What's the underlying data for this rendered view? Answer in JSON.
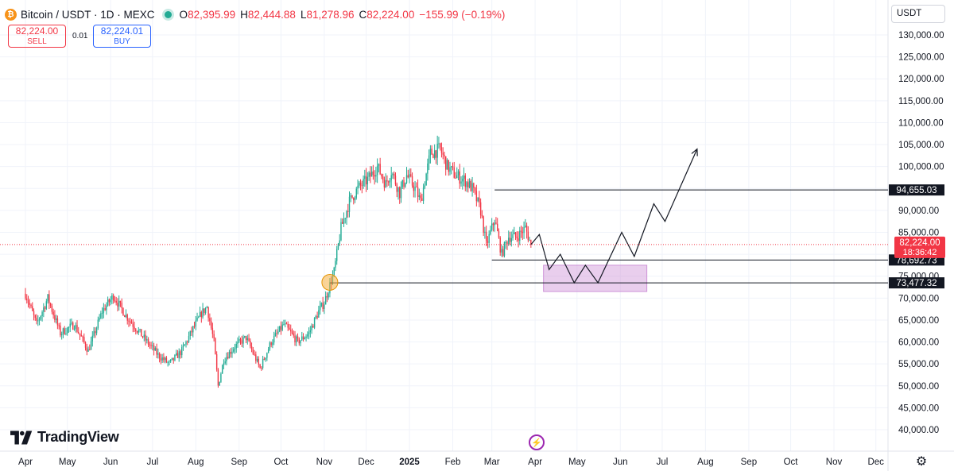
{
  "header": {
    "title": "Bitcoin / USDT · 1D · MEXC",
    "ohlc": [
      {
        "label": "O",
        "value": "82,395.99"
      },
      {
        "label": "H",
        "value": "82,444.88"
      },
      {
        "label": "L",
        "value": "81,278.96"
      },
      {
        "label": "C",
        "value": "82,224.00"
      }
    ],
    "change": "−155.99 (−0.19%)"
  },
  "trade": {
    "sell_price": "82,224.00",
    "sell_label": "SELL",
    "spread": "0.01",
    "buy_price": "82,224.01",
    "buy_label": "BUY"
  },
  "currency": "USDT",
  "brand": "TradingView",
  "colors": {
    "up": "#22ab94",
    "down": "#f23645",
    "zone": "#ce93d8",
    "marker": "#f5b041",
    "label_bg": "#131722"
  },
  "chart_data": {
    "type": "candlestick",
    "symbol": "BTCUSDT",
    "interval": "1D",
    "ylim": [
      37000,
      135500
    ],
    "ticks": [
      {
        "value": 130000,
        "label": "130,000.00"
      },
      {
        "value": 125000,
        "label": "125,000.00"
      },
      {
        "value": 120000,
        "label": "120,000.00"
      },
      {
        "value": 115000,
        "label": "115,000.00"
      },
      {
        "value": 110000,
        "label": "110,000.00"
      },
      {
        "value": 105000,
        "label": "105,000.00"
      },
      {
        "value": 100000,
        "label": "100,000.00"
      },
      {
        "value": 95000,
        "label": "95,000.00"
      },
      {
        "value": 90000,
        "label": "90,000.00"
      },
      {
        "value": 85000,
        "label": "85,000.00"
      },
      {
        "value": 80000,
        "label": "80,000.00"
      },
      {
        "value": 75000,
        "label": "75,000.00"
      },
      {
        "value": 70000,
        "label": "70,000.00"
      },
      {
        "value": 65000,
        "label": "65,000.00"
      },
      {
        "value": 60000,
        "label": "60,000.00"
      },
      {
        "value": 55000,
        "label": "55,000.00"
      },
      {
        "value": 50000,
        "label": "50,000.00"
      },
      {
        "value": 45000,
        "label": "45,000.00"
      },
      {
        "value": 40000,
        "label": "40,000.00"
      }
    ],
    "months": [
      {
        "label": "Apr",
        "day": 0
      },
      {
        "label": "May",
        "day": 30
      },
      {
        "label": "Jun",
        "day": 61
      },
      {
        "label": "Jul",
        "day": 91
      },
      {
        "label": "Aug",
        "day": 122
      },
      {
        "label": "Sep",
        "day": 153
      },
      {
        "label": "Oct",
        "day": 183
      },
      {
        "label": "Nov",
        "day": 214
      },
      {
        "label": "Dec",
        "day": 244
      },
      {
        "label": "2025",
        "day": 275
      },
      {
        "label": "Feb",
        "day": 306
      },
      {
        "label": "Mar",
        "day": 334
      },
      {
        "label": "Apr",
        "day": 365
      },
      {
        "label": "May",
        "day": 395
      },
      {
        "label": "Jun",
        "day": 426
      },
      {
        "label": "Jul",
        "day": 456
      },
      {
        "label": "Aug",
        "day": 487
      },
      {
        "label": "Sep",
        "day": 518
      },
      {
        "label": "Oct",
        "day": 548
      },
      {
        "label": "Nov",
        "day": 579
      },
      {
        "label": "Dec",
        "day": 609
      }
    ],
    "price_path": [
      [
        0,
        71000
      ],
      [
        8,
        64000
      ],
      [
        16,
        70000
      ],
      [
        25,
        62000
      ],
      [
        35,
        64000
      ],
      [
        45,
        58000
      ],
      [
        55,
        67000
      ],
      [
        63,
        70500
      ],
      [
        72,
        66000
      ],
      [
        82,
        62000
      ],
      [
        95,
        57000
      ],
      [
        103,
        55000
      ],
      [
        112,
        58000
      ],
      [
        120,
        63000
      ],
      [
        126,
        66500
      ],
      [
        130,
        68000
      ],
      [
        135,
        60000
      ],
      [
        138,
        50000
      ],
      [
        142,
        56000
      ],
      [
        150,
        59000
      ],
      [
        158,
        61000
      ],
      [
        168,
        54000
      ],
      [
        176,
        60000
      ],
      [
        185,
        64000
      ],
      [
        195,
        60000
      ],
      [
        203,
        62000
      ],
      [
        210,
        67000
      ],
      [
        214,
        69000
      ],
      [
        221,
        76000
      ],
      [
        226,
        86000
      ],
      [
        232,
        92000
      ],
      [
        238,
        95000
      ],
      [
        245,
        97000
      ],
      [
        252,
        100000
      ],
      [
        258,
        96000
      ],
      [
        262,
        99000
      ],
      [
        268,
        94000
      ],
      [
        273,
        98000
      ],
      [
        279,
        95000
      ],
      [
        283,
        92000
      ],
      [
        290,
        103000
      ],
      [
        297,
        104000
      ],
      [
        302,
        100000
      ],
      [
        308,
        98000
      ],
      [
        314,
        97000
      ],
      [
        320,
        95000
      ],
      [
        326,
        90000
      ],
      [
        330,
        82000
      ],
      [
        336,
        88000
      ],
      [
        341,
        80000
      ],
      [
        346,
        84000
      ],
      [
        352,
        84000
      ],
      [
        358,
        86000
      ],
      [
        362,
        82224
      ]
    ],
    "series": [
      {
        "name": "Horizontal level",
        "value": 94655.03,
        "label": "94,655.03",
        "start_day": 336
      },
      {
        "name": "Horizontal level",
        "value": 78692.73,
        "label": "78,692.73",
        "start_day": 334
      },
      {
        "name": "Horizontal level",
        "value": 73477.32,
        "label": "73,477.32",
        "start_day": 218
      }
    ],
    "current_price": {
      "value": 82224.0,
      "label": "82,224.00",
      "countdown": "18:36:42"
    },
    "zone": {
      "from_day": 371,
      "to_day": 445,
      "from_price": 71500,
      "to_price": 77500
    },
    "marker": {
      "day": 218,
      "price": 73600
    },
    "projection": [
      [
        362,
        82224
      ],
      [
        368,
        84500
      ],
      [
        375,
        76500
      ],
      [
        383,
        80000
      ],
      [
        393,
        73500
      ],
      [
        401,
        77500
      ],
      [
        410,
        73500
      ],
      [
        427,
        85000
      ],
      [
        436,
        79500
      ],
      [
        450,
        91500
      ],
      [
        458,
        87500
      ],
      [
        481,
        104000
      ]
    ]
  }
}
